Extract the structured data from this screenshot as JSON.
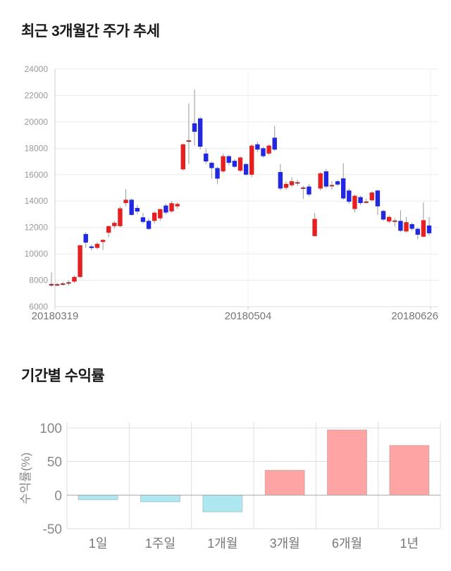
{
  "chart_data": [
    {
      "type": "candlestick",
      "title": "최근 3개월간 주가 추세",
      "ylim": [
        6000,
        24000
      ],
      "yticks": [
        24000,
        22000,
        20000,
        18000,
        16000,
        14000,
        12000,
        10000,
        8000,
        6000
      ],
      "x_labels": [
        "20180319",
        "20180504",
        "20180626"
      ],
      "grid": true,
      "legend": "none",
      "up_color": "#e52020",
      "down_color": "#2128e0",
      "doji_color": "#993333",
      "wick_color": "#999999",
      "candles_format": [
        "open",
        "high",
        "low",
        "close"
      ],
      "candles": [
        [
          7600,
          8600,
          7500,
          7720
        ],
        [
          7650,
          7820,
          7560,
          7700
        ],
        [
          7660,
          7900,
          7580,
          7760
        ],
        [
          7760,
          8000,
          7600,
          7850
        ],
        [
          7900,
          8350,
          7800,
          8250
        ],
        [
          8250,
          10700,
          8150,
          10650
        ],
        [
          11500,
          11650,
          10450,
          10850
        ],
        [
          10560,
          10700,
          10250,
          10440
        ],
        [
          10450,
          10900,
          10350,
          10760
        ],
        [
          10900,
          11100,
          10300,
          11060
        ],
        [
          11600,
          12150,
          11250,
          12100
        ],
        [
          12100,
          12500,
          11900,
          12350
        ],
        [
          12100,
          13600,
          12000,
          13450
        ],
        [
          13850,
          14900,
          13600,
          14100
        ],
        [
          14100,
          14200,
          12900,
          12950
        ],
        [
          13480,
          13700,
          13000,
          13210
        ],
        [
          12770,
          13100,
          12300,
          12420
        ],
        [
          12500,
          12700,
          11800,
          11890
        ],
        [
          12500,
          13200,
          12300,
          13120
        ],
        [
          12690,
          13400,
          12500,
          13390
        ],
        [
          13660,
          13800,
          13000,
          13130
        ],
        [
          13220,
          14000,
          13100,
          13840
        ],
        [
          13600,
          13900,
          13400,
          13780
        ],
        [
          16400,
          18350,
          16300,
          18300
        ],
        [
          18500,
          21400,
          16800,
          18600
        ],
        [
          19890,
          22450,
          18180,
          19250
        ],
        [
          20260,
          20400,
          17900,
          18120
        ],
        [
          17600,
          18000,
          16800,
          17000
        ],
        [
          16900,
          17000,
          15700,
          16500
        ],
        [
          16500,
          16600,
          15300,
          15700
        ],
        [
          16250,
          17600,
          16150,
          17400
        ],
        [
          17400,
          17500,
          16700,
          16900
        ],
        [
          17050,
          17200,
          16500,
          16600
        ],
        [
          16300,
          17400,
          16200,
          17300
        ],
        [
          16800,
          16900,
          15900,
          16000
        ],
        [
          16000,
          18300,
          15800,
          18200
        ],
        [
          18300,
          18500,
          17700,
          17900
        ],
        [
          18000,
          18100,
          17300,
          17400
        ],
        [
          17600,
          18300,
          17500,
          18200
        ],
        [
          18800,
          19700,
          17800,
          17900
        ],
        [
          16200,
          16800,
          14800,
          14950
        ],
        [
          15000,
          15500,
          14850,
          15300
        ],
        [
          15200,
          15800,
          15050,
          15500
        ],
        [
          15400,
          15600,
          15150,
          15430
        ],
        [
          15000,
          15150,
          14150,
          15030
        ],
        [
          15100,
          15300,
          14350,
          14500
        ],
        [
          11350,
          13100,
          11300,
          12650
        ],
        [
          14950,
          16200,
          14800,
          16100
        ],
        [
          16250,
          16430,
          14950,
          15100
        ],
        [
          15170,
          15520,
          14870,
          15220
        ],
        [
          15500,
          15600,
          15100,
          15250
        ],
        [
          15720,
          16870,
          14100,
          14200
        ],
        [
          14800,
          14950,
          13800,
          13950
        ],
        [
          13400,
          14500,
          13150,
          14400
        ],
        [
          14300,
          14400,
          13700,
          13850
        ],
        [
          13920,
          14200,
          13800,
          13970
        ],
        [
          14060,
          14750,
          13950,
          14650
        ],
        [
          14800,
          14850,
          12950,
          13600
        ],
        [
          13250,
          13350,
          12500,
          12600
        ],
        [
          12450,
          12900,
          12300,
          12800
        ],
        [
          12480,
          12700,
          12080,
          12530
        ],
        [
          12500,
          13300,
          11650,
          11750
        ],
        [
          11700,
          12800,
          11600,
          12400
        ],
        [
          12250,
          12350,
          11750,
          11900
        ],
        [
          11900,
          12000,
          11100,
          11450
        ],
        [
          11300,
          13900,
          11250,
          12550
        ],
        [
          12150,
          12800,
          11400,
          11560
        ]
      ]
    },
    {
      "type": "bar",
      "title": "기간별 수익률",
      "ylabel": "수익률(%)",
      "categories": [
        "1일",
        "1주일",
        "1개월",
        "3개월",
        "6개월",
        "1년"
      ],
      "values": [
        -7,
        -10,
        -25,
        37,
        97,
        74
      ],
      "ylim": [
        -50,
        100
      ],
      "yticks": [
        100,
        50,
        0,
        -50
      ],
      "grid": true,
      "legend": "none",
      "positive_color": "#ffa4a4",
      "negative_color": "#ade8f1",
      "bar_border_color": "rgba(120,120,120,0.35)",
      "zero_line_color": "#aaaaaa"
    }
  ],
  "style": {
    "title_color": "#1a1a1a",
    "grid_color": "#ebebeb",
    "axis_color": "#cccccc",
    "price_ytick_color": "#999999",
    "price_xlabel_color": "#777777",
    "bar_tick_color": "#888888",
    "bar_cat_color": "#777777"
  }
}
